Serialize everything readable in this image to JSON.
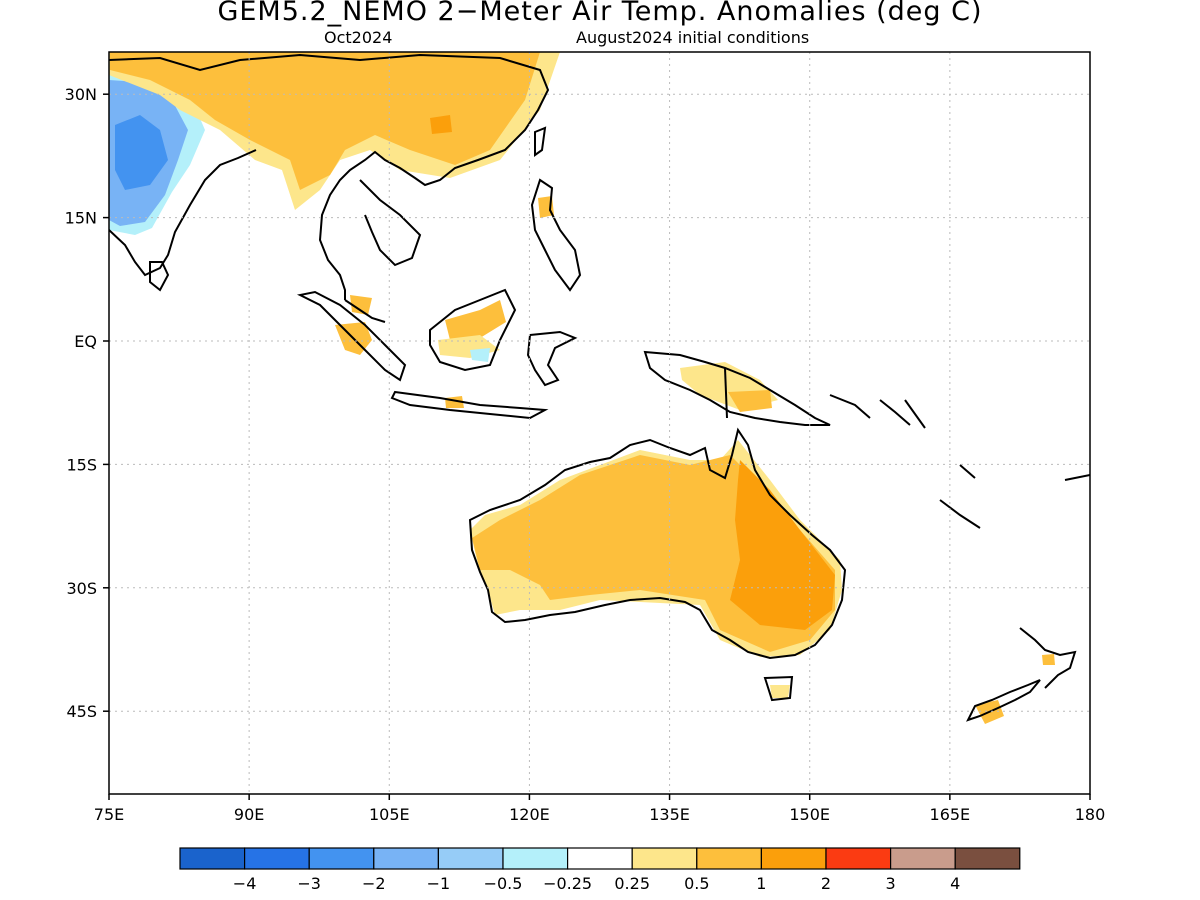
{
  "title": "GEM5.2_NEMO 2−Meter Air Temp. Anomalies (deg C)",
  "subtitle_left": "Oct2024",
  "subtitle_right": "August2024 initial conditions",
  "map": {
    "lat_ticks": [
      {
        "lat": 30,
        "label": "30N"
      },
      {
        "lat": 15,
        "label": "15N"
      },
      {
        "lat": 0,
        "label": "EQ"
      },
      {
        "lat": -15,
        "label": "15S"
      },
      {
        "lat": -30,
        "label": "30S"
      },
      {
        "lat": -45,
        "label": "45S"
      }
    ],
    "lon_ticks": [
      {
        "lon": 75,
        "label": "75E"
      },
      {
        "lon": 90,
        "label": "90E"
      },
      {
        "lon": 105,
        "label": "105E"
      },
      {
        "lon": 120,
        "label": "120E"
      },
      {
        "lon": 135,
        "label": "135E"
      },
      {
        "lon": 150,
        "label": "150E"
      },
      {
        "lon": 165,
        "label": "165E"
      },
      {
        "lon": 180,
        "label": "180"
      }
    ],
    "lon_range": [
      75,
      180
    ],
    "lat_range": [
      -55,
      35
    ],
    "grid": true
  },
  "colorbar": {
    "colors": [
      "#1a63cc",
      "#2673e6",
      "#4393f0",
      "#78b3f5",
      "#96ccf7",
      "#b4f0fa",
      "#ffffff",
      "#fde68b",
      "#fdbf3c",
      "#fb9f0b",
      "#fb3b12",
      "#c99c8c",
      "#7a4f3f"
    ],
    "labels": [
      "−4",
      "−3",
      "−2",
      "−1",
      "−0.5",
      "−0.25",
      "0.25",
      "0.5",
      "1",
      "2",
      "3",
      "4"
    ]
  }
}
